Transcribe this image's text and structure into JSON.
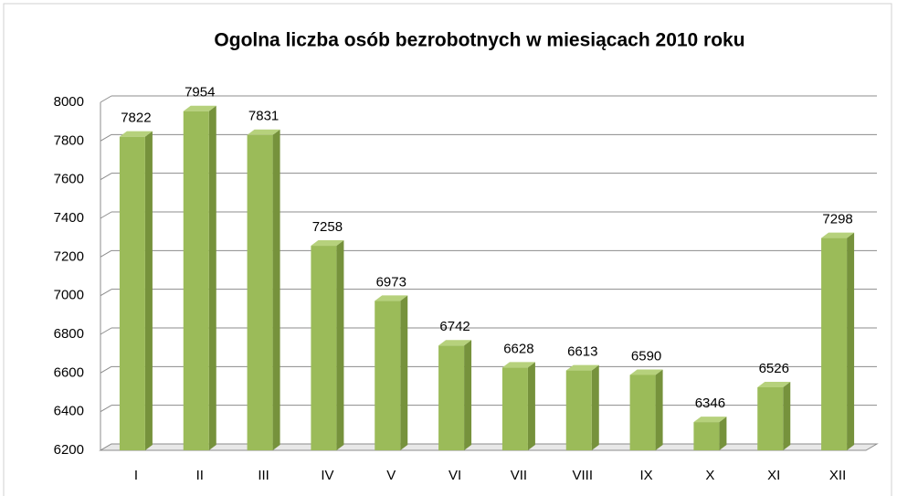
{
  "chart_data": {
    "type": "bar",
    "title": "Ogolna liczba osób bezrobotnych w miesiącach 2010 roku",
    "categories": [
      "I",
      "II",
      "III",
      "IV",
      "V",
      "VI",
      "VII",
      "VIII",
      "IX",
      "X",
      "XI",
      "XII"
    ],
    "values": [
      7822,
      7954,
      7831,
      7258,
      6973,
      6742,
      6628,
      6613,
      6590,
      6346,
      6526,
      7298
    ],
    "color": "#9bbb59",
    "ylim": [
      6200,
      8000
    ],
    "yticks": [
      6200,
      6400,
      6600,
      6800,
      7000,
      7200,
      7400,
      7600,
      7800,
      8000
    ],
    "grid": true
  }
}
